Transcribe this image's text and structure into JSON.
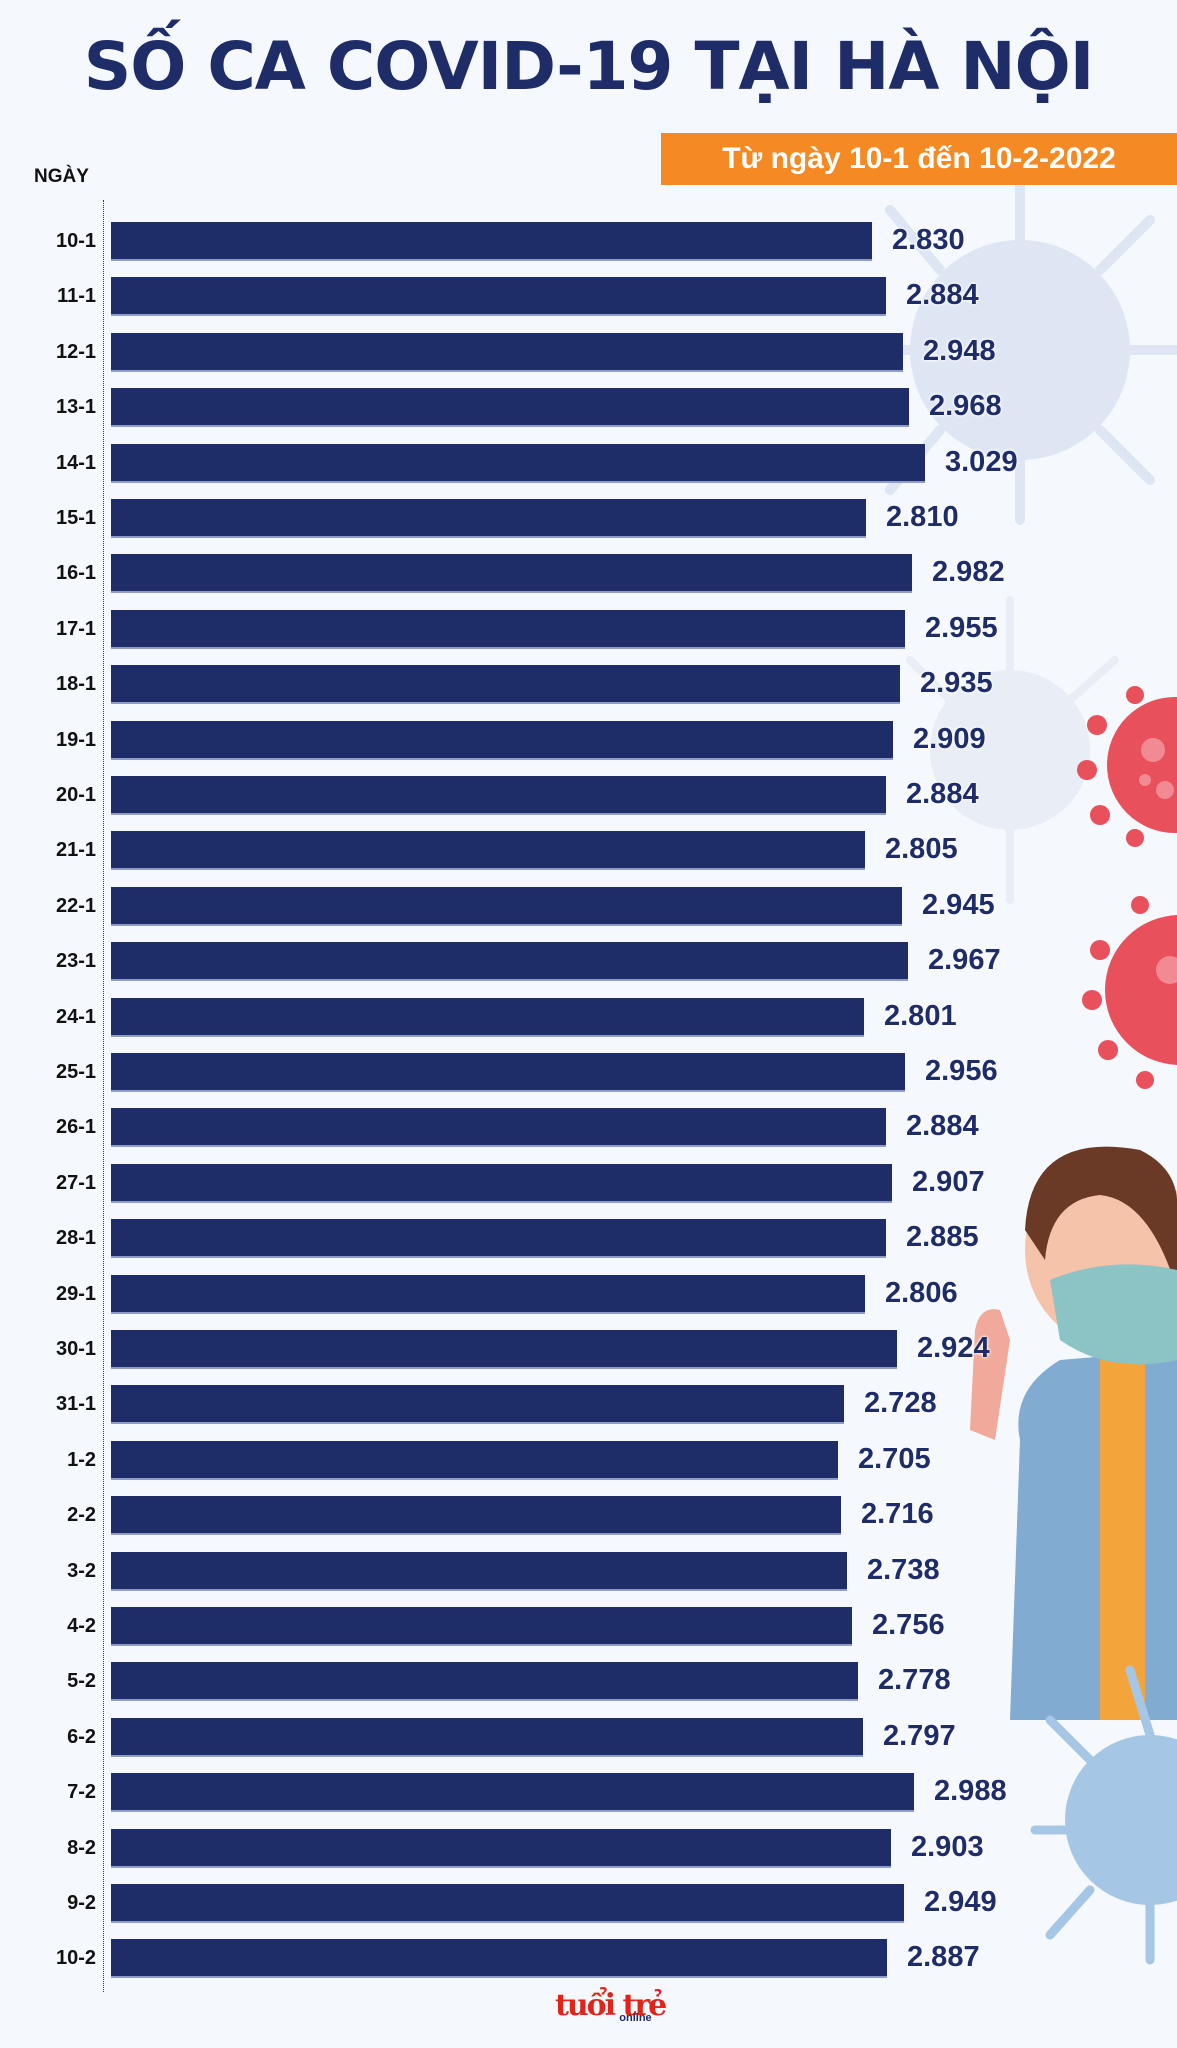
{
  "header": {
    "title": "SỐ CA COVID-19 TẠI HÀ NỘI",
    "subtitle": "Từ ngày 10-1 đến 10-2-2022",
    "axis_label": "NGÀY"
  },
  "footer": {
    "logo": "tuổi trẻ",
    "logo_sub": "online"
  },
  "colors": {
    "bar": "#1e2c68",
    "title": "#1e2c68",
    "subtitle_bg": "#f58a24",
    "background": "#f5f8fc"
  },
  "chart_data": {
    "type": "bar",
    "orientation": "horizontal",
    "title": "SỐ CA COVID-19 TẠI HÀ NỘI",
    "subtitle": "Từ ngày 10-1 đến 10-2-2022",
    "xlabel": "",
    "ylabel": "NGÀY",
    "grid": false,
    "legend": null,
    "categories": [
      "10-1",
      "11-1",
      "12-1",
      "13-1",
      "14-1",
      "15-1",
      "16-1",
      "17-1",
      "18-1",
      "19-1",
      "20-1",
      "21-1",
      "22-1",
      "23-1",
      "24-1",
      "25-1",
      "26-1",
      "27-1",
      "28-1",
      "29-1",
      "30-1",
      "31-1",
      "1-2",
      "2-2",
      "3-2",
      "4-2",
      "5-2",
      "6-2",
      "7-2",
      "8-2",
      "9-2",
      "10-2"
    ],
    "values": [
      2830,
      2884,
      2948,
      2968,
      3029,
      2810,
      2982,
      2955,
      2935,
      2909,
      2884,
      2805,
      2945,
      2967,
      2801,
      2956,
      2884,
      2907,
      2885,
      2806,
      2924,
      2728,
      2705,
      2716,
      2738,
      2756,
      2778,
      2797,
      2988,
      2903,
      2949,
      2887
    ],
    "value_labels": [
      "2.830",
      "2.884",
      "2.948",
      "2.968",
      "3.029",
      "2.810",
      "2.982",
      "2.955",
      "2.935",
      "2.909",
      "2.884",
      "2.805",
      "2.945",
      "2.967",
      "2.801",
      "2.956",
      "2.884",
      "2.907",
      "2.885",
      "2.806",
      "2.924",
      "2.728",
      "2.705",
      "2.716",
      "2.738",
      "2.756",
      "2.778",
      "2.797",
      "2.988",
      "2.903",
      "2.949",
      "2.887"
    ],
    "xlim": [
      0,
      3029
    ]
  }
}
